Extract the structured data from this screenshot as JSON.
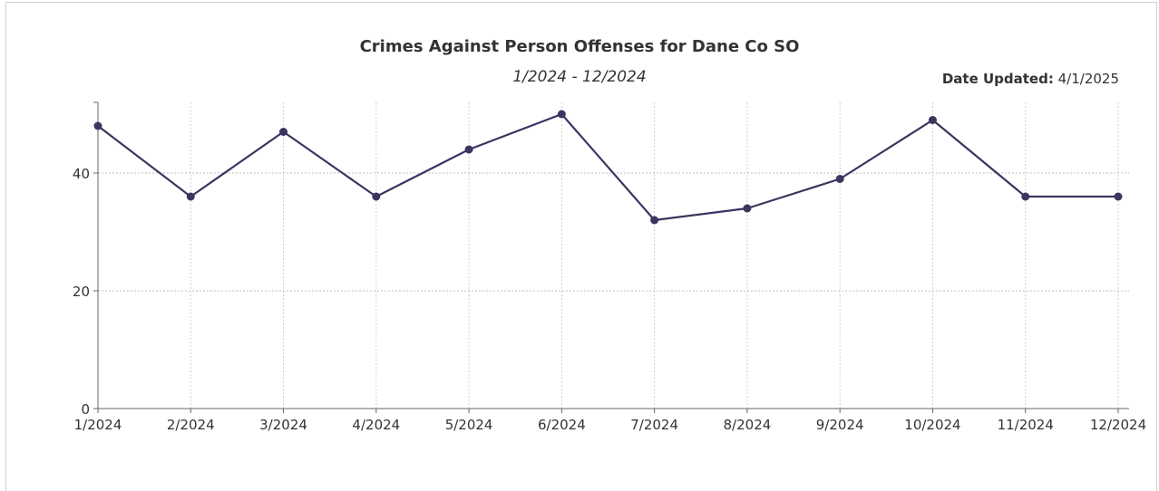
{
  "header": {
    "title": "Crimes Against Person Offenses for Dane Co SO",
    "subtitle": "1/2024 - 12/2024",
    "date_updated_label": "Date Updated:",
    "date_updated_value": "4/1/2025"
  },
  "colors": {
    "line": "#3b3560",
    "grid": "#bdbdbd",
    "vgrid": "#e0c8d0",
    "axis": "#666666"
  },
  "chart_data": {
    "type": "line",
    "title": "Crimes Against Person Offenses for Dane Co SO",
    "subtitle": "1/2024 - 12/2024",
    "xlabel": "",
    "ylabel": "",
    "categories": [
      "1/2024",
      "2/2024",
      "3/2024",
      "4/2024",
      "5/2024",
      "6/2024",
      "7/2024",
      "8/2024",
      "9/2024",
      "10/2024",
      "11/2024",
      "12/2024"
    ],
    "series": [
      {
        "values": [
          48,
          36,
          47,
          36,
          44,
          50,
          32,
          34,
          39,
          49,
          36,
          36
        ]
      }
    ],
    "ylim": [
      0,
      52
    ],
    "yticks": [
      "0",
      "20",
      "40"
    ],
    "grid": true,
    "legend": "none"
  }
}
